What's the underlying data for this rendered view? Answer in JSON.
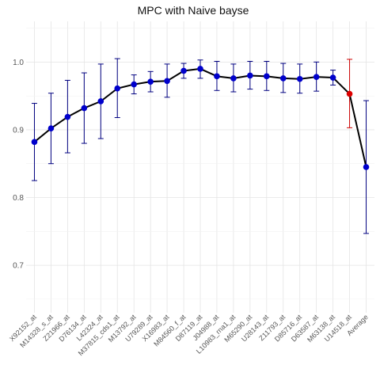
{
  "chart_data": {
    "type": "line",
    "title": "MPC with Naive bayse",
    "xlabel": "",
    "ylabel": "",
    "ylim": [
      0.63,
      1.06
    ],
    "yticks": [
      0.7,
      0.8,
      0.9,
      1.0
    ],
    "ytick_labels": [
      "0.7",
      "0.8",
      "0.9",
      "1.0"
    ],
    "grid": true,
    "legend": "none",
    "categories": [
      "X92152_at",
      "M14328_s_at",
      "Z21966_at",
      "D76134_at",
      "L42324_at",
      "M37815_cds1_at",
      "M13792_at",
      "U79289_at",
      "X16983_at",
      "M84560_f_at",
      "D87119_at",
      "J04988_at",
      "L10983_rna1_at",
      "M65290_at",
      "U28143_at",
      "Z11793_at",
      "D85716_at",
      "D63587_at",
      "M63138_at",
      "U14518_at",
      "Average"
    ],
    "series": [
      {
        "values": [
          0.882,
          0.902,
          0.919,
          0.932,
          0.942,
          0.961,
          0.967,
          0.971,
          0.972,
          0.987,
          0.99,
          0.979,
          0.976,
          0.98,
          0.979,
          0.976,
          0.975,
          0.978,
          0.977,
          0.953,
          0.845
        ],
        "lower": [
          0.825,
          0.85,
          0.866,
          0.88,
          0.887,
          0.918,
          0.953,
          0.956,
          0.948,
          0.976,
          0.976,
          0.958,
          0.956,
          0.96,
          0.958,
          0.955,
          0.954,
          0.957,
          0.966,
          0.903,
          0.747
        ],
        "upper": [
          0.939,
          0.954,
          0.973,
          0.984,
          0.997,
          1.005,
          0.981,
          0.986,
          0.997,
          0.998,
          1.003,
          1.001,
          0.997,
          1.001,
          1.001,
          0.998,
          0.997,
          1.0,
          0.988,
          1.004,
          0.943
        ]
      }
    ],
    "colors": {
      "point": "#0000cc",
      "errorbar": "#000080",
      "line": "#000000",
      "highlight_point": "#dd0000",
      "highlight_errorbar": "#cc0000",
      "grid_major": "#e4e4e4",
      "grid_minor": "#f1f1f1"
    },
    "highlight_index": 19
  }
}
